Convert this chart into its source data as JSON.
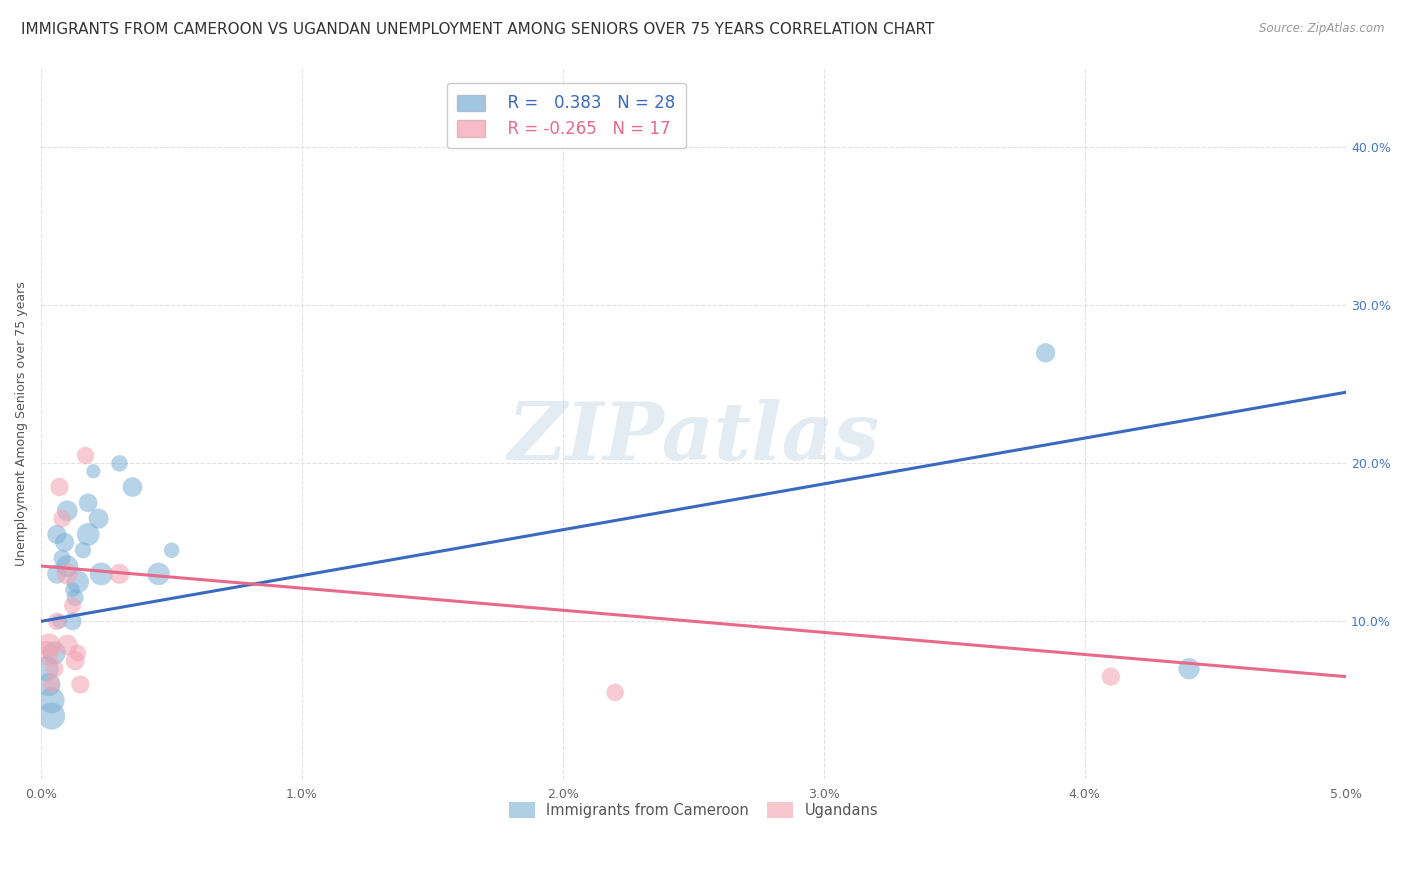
{
  "title": "IMMIGRANTS FROM CAMEROON VS UGANDAN UNEMPLOYMENT AMONG SENIORS OVER 75 YEARS CORRELATION CHART",
  "source": "Source: ZipAtlas.com",
  "ylabel": "Unemployment Among Seniors over 75 years",
  "xlim": [
    0.0,
    0.05
  ],
  "ylim": [
    0.0,
    0.45
  ],
  "x_ticks": [
    0.0,
    0.01,
    0.02,
    0.03,
    0.04,
    0.05
  ],
  "x_tick_labels": [
    "0.0%",
    "1.0%",
    "2.0%",
    "3.0%",
    "4.0%",
    "5.0%"
  ],
  "y_ticks": [
    0.0,
    0.1,
    0.2,
    0.3,
    0.4
  ],
  "y_tick_labels_right": [
    "",
    "10.0%",
    "20.0%",
    "30.0%",
    "40.0%"
  ],
  "blue_R": "0.383",
  "blue_N": "28",
  "pink_R": "-0.265",
  "pink_N": "17",
  "legend_label_blue": "Immigrants from Cameroon",
  "legend_label_pink": "Ugandans",
  "watermark": "ZIPatlas",
  "blue_color": "#7aafd4",
  "pink_color": "#f4a0b0",
  "blue_line_color": "#3a6abf",
  "pink_line_color": "#e8698a",
  "blue_points": [
    [
      0.0002,
      0.07
    ],
    [
      0.0003,
      0.06
    ],
    [
      0.0004,
      0.05
    ],
    [
      0.0004,
      0.04
    ],
    [
      0.0005,
      0.08
    ],
    [
      0.0006,
      0.13
    ],
    [
      0.0006,
      0.155
    ],
    [
      0.0007,
      0.1
    ],
    [
      0.0008,
      0.14
    ],
    [
      0.0009,
      0.15
    ],
    [
      0.001,
      0.17
    ],
    [
      0.001,
      0.135
    ],
    [
      0.0012,
      0.1
    ],
    [
      0.0012,
      0.12
    ],
    [
      0.0013,
      0.115
    ],
    [
      0.0014,
      0.125
    ],
    [
      0.0016,
      0.145
    ],
    [
      0.0018,
      0.175
    ],
    [
      0.0018,
      0.155
    ],
    [
      0.002,
      0.195
    ],
    [
      0.0022,
      0.165
    ],
    [
      0.0023,
      0.13
    ],
    [
      0.003,
      0.2
    ],
    [
      0.0035,
      0.185
    ],
    [
      0.0045,
      0.13
    ],
    [
      0.005,
      0.145
    ],
    [
      0.0385,
      0.27
    ],
    [
      0.044,
      0.07
    ]
  ],
  "pink_points": [
    [
      0.0002,
      0.08
    ],
    [
      0.0003,
      0.085
    ],
    [
      0.0004,
      0.06
    ],
    [
      0.0005,
      0.07
    ],
    [
      0.0006,
      0.1
    ],
    [
      0.0007,
      0.185
    ],
    [
      0.0008,
      0.165
    ],
    [
      0.001,
      0.13
    ],
    [
      0.001,
      0.085
    ],
    [
      0.0012,
      0.11
    ],
    [
      0.0013,
      0.075
    ],
    [
      0.0014,
      0.08
    ],
    [
      0.0015,
      0.06
    ],
    [
      0.0017,
      0.205
    ],
    [
      0.003,
      0.13
    ],
    [
      0.022,
      0.055
    ],
    [
      0.041,
      0.065
    ]
  ],
  "blue_line": [
    0.1,
    0.245
  ],
  "pink_line": [
    0.135,
    0.065
  ],
  "background_color": "#ffffff",
  "grid_color": "#dddddd",
  "title_fontsize": 11,
  "axis_label_fontsize": 9,
  "tick_fontsize": 9,
  "legend_fontsize": 11
}
